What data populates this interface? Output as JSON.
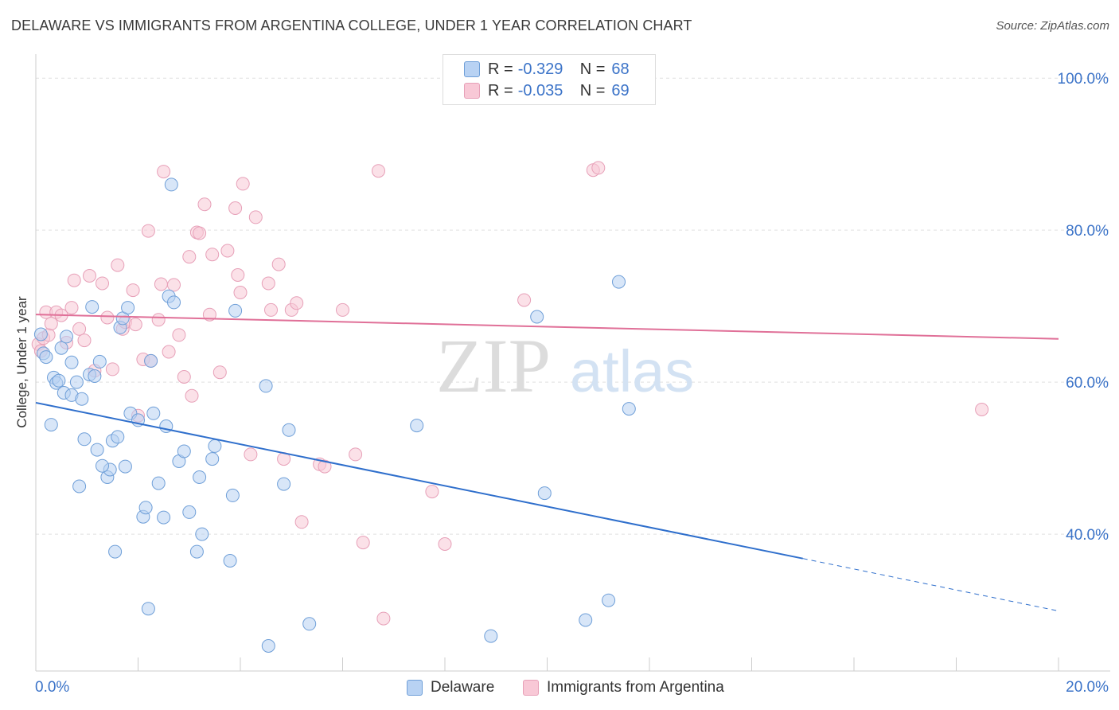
{
  "title": "DELAWARE VS IMMIGRANTS FROM ARGENTINA COLLEGE, UNDER 1 YEAR CORRELATION CHART",
  "source": "Source: ZipAtlas.com",
  "watermark": {
    "zip": "ZIP",
    "atlas": "atlas"
  },
  "legend": {
    "r_label": "R =",
    "n_label": "N =",
    "rows": [
      {
        "series": "Delaware",
        "r": "-0.329",
        "n": "68"
      },
      {
        "series": "Immigrants from Argentina",
        "r": "-0.035",
        "n": "69"
      }
    ]
  },
  "chart_data": {
    "type": "scatter",
    "title": "DELAWARE VS IMMIGRANTS FROM ARGENTINA COLLEGE, UNDER 1 YEAR CORRELATION CHART",
    "xlabel": "",
    "ylabel": "College, Under 1 year",
    "xlim": [
      0,
      20
    ],
    "ylim": [
      22,
      104
    ],
    "x_tick_labels": [
      "0.0%",
      "20.0%"
    ],
    "y_ticks": [
      40,
      60,
      80,
      100
    ],
    "y_tick_labels": [
      "40.0%",
      "60.0%",
      "80.0%",
      "100.0%"
    ],
    "grid": true,
    "legend_position": "top-center",
    "colors": {
      "Delaware": {
        "fill": "#b8d2f3",
        "stroke": "#6f9fd8",
        "line": "#2f6fcc"
      },
      "Immigrants from Argentina": {
        "fill": "#f8c8d6",
        "stroke": "#e7a0b8",
        "line": "#e07098"
      }
    },
    "series": [
      {
        "name": "Delaware",
        "trend": {
          "x0": 0,
          "y0": 57.3,
          "x1": 15.0,
          "y1": 36.8,
          "dashed_to_x": 20,
          "dashed_to_y": 29.9
        },
        "points": [
          [
            0.1,
            66.3
          ],
          [
            0.15,
            63.8
          ],
          [
            0.2,
            63.3
          ],
          [
            0.3,
            54.4
          ],
          [
            0.35,
            60.6
          ],
          [
            0.4,
            59.9
          ],
          [
            0.45,
            60.2
          ],
          [
            0.5,
            64.5
          ],
          [
            0.55,
            58.6
          ],
          [
            0.7,
            62.6
          ],
          [
            0.7,
            58.3
          ],
          [
            0.8,
            60.0
          ],
          [
            0.85,
            46.3
          ],
          [
            0.9,
            57.8
          ],
          [
            0.95,
            52.5
          ],
          [
            1.05,
            61.0
          ],
          [
            1.1,
            69.9
          ],
          [
            1.15,
            60.8
          ],
          [
            1.2,
            51.1
          ],
          [
            1.25,
            62.7
          ],
          [
            1.4,
            47.5
          ],
          [
            1.45,
            48.5
          ],
          [
            1.5,
            52.3
          ],
          [
            1.55,
            37.7
          ],
          [
            1.6,
            52.8
          ],
          [
            1.65,
            67.2
          ],
          [
            1.7,
            68.4
          ],
          [
            1.75,
            48.9
          ],
          [
            1.8,
            69.8
          ],
          [
            1.85,
            55.9
          ],
          [
            2.1,
            42.3
          ],
          [
            2.15,
            43.5
          ],
          [
            2.2,
            30.2
          ],
          [
            2.25,
            62.8
          ],
          [
            2.3,
            55.9
          ],
          [
            2.4,
            46.7
          ],
          [
            2.5,
            42.2
          ],
          [
            2.55,
            54.2
          ],
          [
            2.6,
            71.3
          ],
          [
            2.65,
            86.0
          ],
          [
            2.7,
            70.5
          ],
          [
            2.8,
            49.6
          ],
          [
            2.9,
            50.9
          ],
          [
            3.0,
            42.9
          ],
          [
            3.15,
            37.7
          ],
          [
            3.2,
            47.5
          ],
          [
            3.25,
            40.0
          ],
          [
            3.45,
            49.9
          ],
          [
            3.5,
            51.6
          ],
          [
            3.8,
            36.5
          ],
          [
            3.85,
            45.1
          ],
          [
            3.9,
            69.4
          ],
          [
            4.5,
            59.5
          ],
          [
            4.55,
            25.3
          ],
          [
            4.85,
            46.6
          ],
          [
            4.95,
            53.7
          ],
          [
            5.35,
            28.2
          ],
          [
            7.45,
            54.3
          ],
          [
            8.9,
            26.6
          ],
          [
            9.8,
            68.6
          ],
          [
            9.95,
            45.4
          ],
          [
            10.75,
            28.7
          ],
          [
            11.2,
            31.3
          ],
          [
            11.4,
            73.2
          ],
          [
            11.6,
            56.5
          ],
          [
            2.0,
            55.0
          ],
          [
            0.6,
            66.0
          ],
          [
            1.3,
            49.0
          ]
        ]
      },
      {
        "name": "Immigrants from Argentina",
        "trend": {
          "x0": 0,
          "y0": 68.9,
          "x1": 20,
          "y1": 65.7
        },
        "points": [
          [
            0.05,
            65.0
          ],
          [
            0.1,
            64.1
          ],
          [
            0.15,
            65.8
          ],
          [
            0.2,
            69.2
          ],
          [
            0.25,
            66.2
          ],
          [
            0.3,
            67.7
          ],
          [
            0.4,
            69.2
          ],
          [
            0.5,
            68.8
          ],
          [
            0.6,
            65.2
          ],
          [
            0.7,
            69.8
          ],
          [
            0.75,
            73.4
          ],
          [
            0.85,
            67.0
          ],
          [
            0.95,
            65.5
          ],
          [
            1.05,
            74.0
          ],
          [
            1.15,
            61.5
          ],
          [
            1.3,
            73.0
          ],
          [
            1.4,
            68.5
          ],
          [
            1.5,
            61.7
          ],
          [
            1.6,
            75.4
          ],
          [
            1.7,
            67.0
          ],
          [
            1.75,
            67.9
          ],
          [
            1.9,
            72.1
          ],
          [
            1.95,
            67.6
          ],
          [
            2.0,
            55.6
          ],
          [
            2.1,
            63.0
          ],
          [
            2.2,
            79.9
          ],
          [
            2.25,
            62.8
          ],
          [
            2.4,
            68.2
          ],
          [
            2.45,
            72.9
          ],
          [
            2.5,
            87.7
          ],
          [
            2.6,
            64.0
          ],
          [
            2.7,
            72.8
          ],
          [
            2.8,
            66.2
          ],
          [
            2.9,
            60.7
          ],
          [
            3.0,
            76.5
          ],
          [
            3.05,
            58.2
          ],
          [
            3.15,
            79.7
          ],
          [
            3.2,
            79.6
          ],
          [
            3.3,
            83.4
          ],
          [
            3.4,
            68.9
          ],
          [
            3.45,
            76.8
          ],
          [
            3.6,
            61.3
          ],
          [
            3.75,
            77.3
          ],
          [
            3.9,
            82.9
          ],
          [
            3.95,
            74.1
          ],
          [
            4.0,
            71.8
          ],
          [
            4.05,
            86.1
          ],
          [
            4.2,
            50.5
          ],
          [
            4.3,
            81.7
          ],
          [
            4.55,
            73.0
          ],
          [
            4.6,
            69.5
          ],
          [
            4.75,
            75.5
          ],
          [
            4.85,
            49.9
          ],
          [
            5.0,
            69.5
          ],
          [
            5.1,
            70.4
          ],
          [
            5.2,
            41.6
          ],
          [
            5.55,
            49.2
          ],
          [
            5.65,
            48.9
          ],
          [
            6.0,
            69.5
          ],
          [
            6.25,
            50.5
          ],
          [
            6.4,
            38.9
          ],
          [
            6.8,
            28.9
          ],
          [
            6.7,
            87.8
          ],
          [
            7.75,
            45.6
          ],
          [
            8.0,
            38.7
          ],
          [
            9.55,
            70.8
          ],
          [
            10.9,
            87.9
          ],
          [
            11.0,
            88.2
          ],
          [
            18.5,
            56.4
          ]
        ]
      }
    ]
  }
}
